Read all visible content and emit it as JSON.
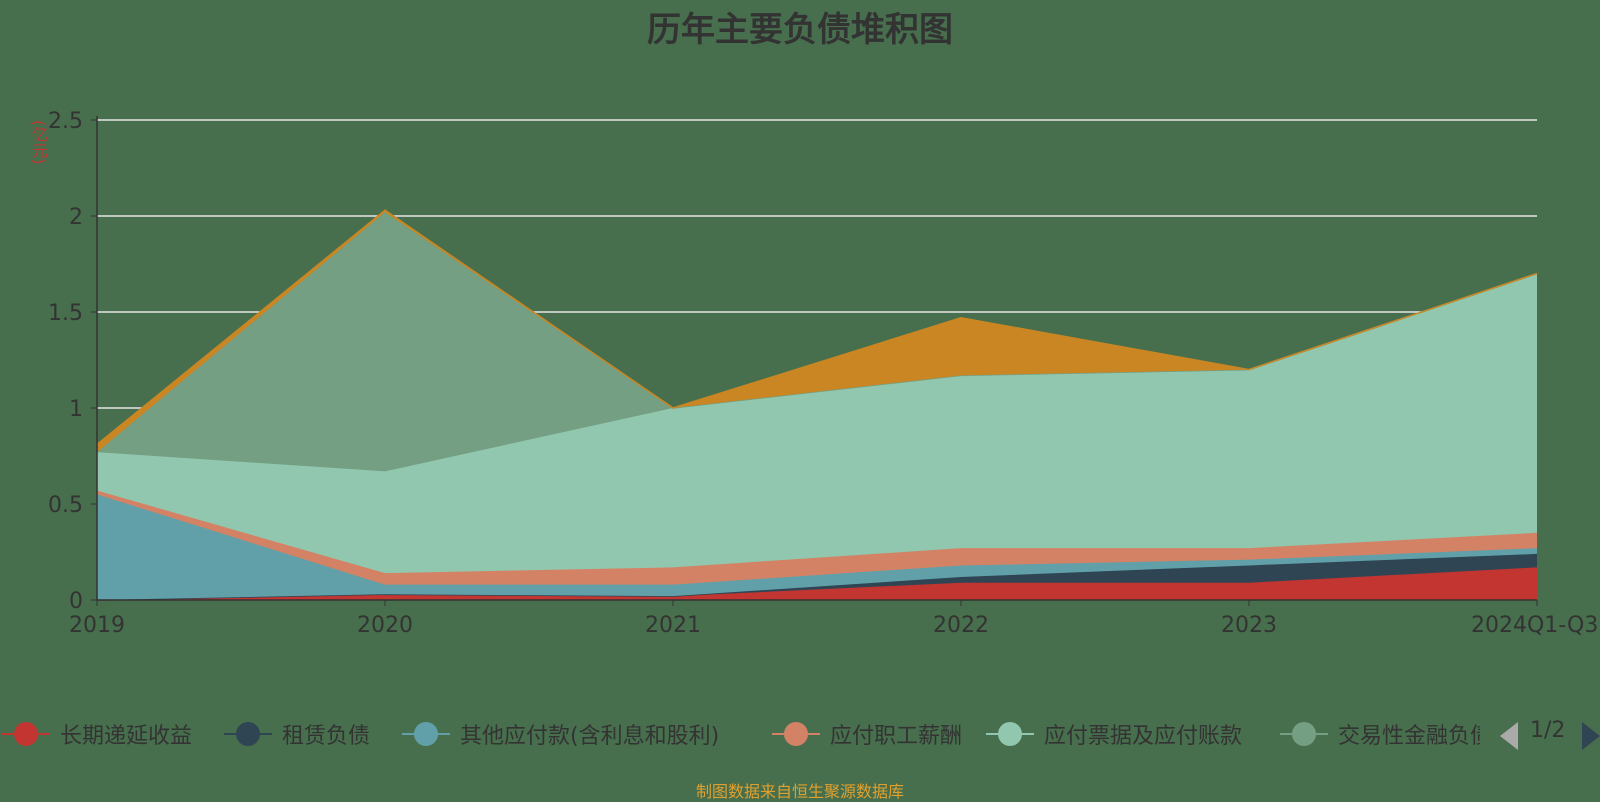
{
  "chart_data": {
    "type": "area",
    "title": "历年主要负债堆积图",
    "ylabel": "(亿元)",
    "xlabel": "",
    "stacked": true,
    "ylim": [
      0,
      2.5
    ],
    "yticks": [
      "0",
      "0.5",
      "1",
      "1.5",
      "2",
      "2.5"
    ],
    "grid": true,
    "categories": [
      "2019",
      "2020",
      "2021",
      "2022",
      "2023",
      "2024Q1-Q3"
    ],
    "series": [
      {
        "name": "长期递延收益",
        "color": "#C23531",
        "values": [
          0.0,
          0.03,
          0.02,
          0.09,
          0.09,
          0.17
        ]
      },
      {
        "name": "租赁负债",
        "color": "#2F4554",
        "values": [
          0.0,
          0.0,
          0.0,
          0.03,
          0.09,
          0.07
        ]
      },
      {
        "name": "其他应付款(含利息和股利)",
        "color": "#61A0A8",
        "values": [
          0.55,
          0.05,
          0.06,
          0.06,
          0.03,
          0.03
        ]
      },
      {
        "name": "应付职工薪酬",
        "color": "#D48265",
        "values": [
          0.02,
          0.06,
          0.09,
          0.09,
          0.06,
          0.08
        ]
      },
      {
        "name": "应付票据及应付账款",
        "color": "#91C7AE",
        "values": [
          0.2,
          0.53,
          0.83,
          0.9,
          0.93,
          1.35
        ]
      },
      {
        "name": "交易性金融负债",
        "color": "#749F83",
        "values": [
          0.0,
          1.35,
          0.0,
          0.0,
          0.0,
          0.0
        ]
      },
      {
        "name": "",
        "color": "#CA8622",
        "values": [
          0.04,
          0.01,
          0.0,
          0.3,
          0.0,
          0.0
        ]
      }
    ]
  },
  "legend": {
    "items": [
      {
        "label": "长期递延收益",
        "color": "#C23531"
      },
      {
        "label": "租赁负债",
        "color": "#2F4554"
      },
      {
        "label": "其他应付款(含利息和股利)",
        "color": "#61A0A8"
      },
      {
        "label": "应付职工薪酬",
        "color": "#D48265"
      },
      {
        "label": "应付票据及应付账款",
        "color": "#91C7AE"
      },
      {
        "label": "交易性金融负债",
        "color": "#749F83"
      }
    ],
    "page": "1/2"
  },
  "source_note": "制图数据来自恒生聚源数据库"
}
